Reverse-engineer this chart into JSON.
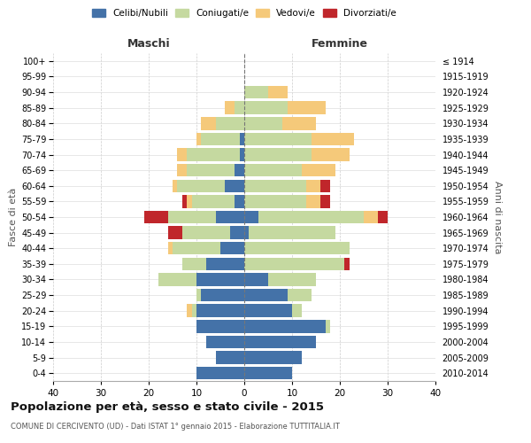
{
  "age_groups": [
    "0-4",
    "5-9",
    "10-14",
    "15-19",
    "20-24",
    "25-29",
    "30-34",
    "35-39",
    "40-44",
    "45-49",
    "50-54",
    "55-59",
    "60-64",
    "65-69",
    "70-74",
    "75-79",
    "80-84",
    "85-89",
    "90-94",
    "95-99",
    "100+"
  ],
  "birth_years": [
    "2010-2014",
    "2005-2009",
    "2000-2004",
    "1995-1999",
    "1990-1994",
    "1985-1989",
    "1980-1984",
    "1975-1979",
    "1970-1974",
    "1965-1969",
    "1960-1964",
    "1955-1959",
    "1950-1954",
    "1945-1949",
    "1940-1944",
    "1935-1939",
    "1930-1934",
    "1925-1929",
    "1920-1924",
    "1915-1919",
    "≤ 1914"
  ],
  "male": {
    "celibi": [
      10,
      6,
      8,
      10,
      10,
      9,
      10,
      8,
      5,
      3,
      6,
      2,
      4,
      2,
      1,
      1,
      0,
      0,
      0,
      0,
      0
    ],
    "coniugati": [
      0,
      0,
      0,
      0,
      1,
      1,
      8,
      5,
      10,
      10,
      10,
      9,
      10,
      10,
      11,
      8,
      6,
      2,
      0,
      0,
      0
    ],
    "vedovi": [
      0,
      0,
      0,
      0,
      1,
      0,
      0,
      0,
      1,
      0,
      0,
      1,
      1,
      2,
      2,
      1,
      3,
      2,
      0,
      0,
      0
    ],
    "divorziati": [
      0,
      0,
      0,
      0,
      0,
      0,
      0,
      0,
      0,
      3,
      5,
      1,
      0,
      0,
      0,
      0,
      0,
      0,
      0,
      0,
      0
    ]
  },
  "female": {
    "nubili": [
      10,
      12,
      15,
      17,
      10,
      9,
      5,
      0,
      0,
      1,
      3,
      0,
      0,
      0,
      0,
      0,
      0,
      0,
      0,
      0,
      0
    ],
    "coniugate": [
      0,
      0,
      0,
      1,
      2,
      5,
      10,
      21,
      22,
      18,
      22,
      13,
      13,
      12,
      14,
      14,
      8,
      9,
      5,
      0,
      0
    ],
    "vedove": [
      0,
      0,
      0,
      0,
      0,
      0,
      0,
      0,
      0,
      0,
      3,
      3,
      3,
      7,
      8,
      9,
      7,
      8,
      4,
      0,
      0
    ],
    "divorziate": [
      0,
      0,
      0,
      0,
      0,
      0,
      0,
      1,
      0,
      0,
      2,
      2,
      2,
      0,
      0,
      0,
      0,
      0,
      0,
      0,
      0
    ]
  },
  "colors": {
    "celibi_nubili": "#4472a8",
    "coniugati": "#c5d9a0",
    "vedovi": "#f5c97a",
    "divorziati": "#c0262b"
  },
  "xlim": 40,
  "title": "Popolazione per età, sesso e stato civile - 2015",
  "subtitle": "COMUNE DI CERCIVENTO (UD) - Dati ISTAT 1° gennaio 2015 - Elaborazione TUTTITALIA.IT",
  "ylabel_left": "Fasce di età",
  "ylabel_right": "Anni di nascita",
  "xlabel_maschi": "Maschi",
  "xlabel_femmine": "Femmine"
}
